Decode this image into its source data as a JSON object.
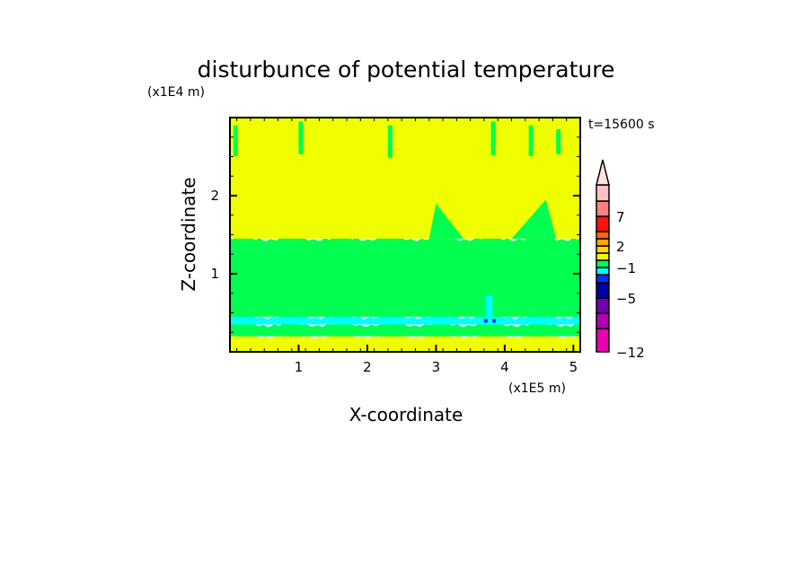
{
  "chart_data": {
    "type": "heatmap",
    "title": "disturbunce of potential temperature",
    "xlabel": "X-coordinate",
    "ylabel": "Z-coordinate",
    "x_unit": "(x1E5 m)",
    "y_unit": "(x1E4 m)",
    "time_label": "t=15600 s",
    "xlim": [
      0,
      5.1
    ],
    "ylim": [
      0,
      3
    ],
    "x_ticks": [
      "1",
      "2",
      "3",
      "4",
      "5"
    ],
    "y_ticks": [
      "1",
      "2"
    ],
    "colorbar": {
      "levels": [
        -12,
        -9,
        -7,
        -5,
        -3,
        -2,
        -1,
        0,
        1,
        2,
        3,
        5,
        7,
        10,
        15
      ],
      "labels": [
        "7",
        "2",
        "-1",
        "-5",
        "-12"
      ],
      "colors": [
        "#e800b0",
        "#b000b0",
        "#7000b0",
        "#0000a0",
        "#0030ff",
        "#00ffff",
        "#00ff50",
        "#f0ff00",
        "#ffd700",
        "#ffa500",
        "#ff6600",
        "#ff1010",
        "#ff8080",
        "#ffc0c0"
      ],
      "extend_color": "#ffe0e0"
    },
    "bands": [
      {
        "z": [
          0,
          0.2
        ],
        "value_range": [
          0,
          1
        ]
      },
      {
        "z": [
          0.2,
          0.35
        ],
        "value_range": [
          -1,
          0
        ]
      },
      {
        "z": [
          0.35,
          0.45
        ],
        "value_range": [
          -2,
          -1
        ]
      },
      {
        "z": [
          0.45,
          1.45
        ],
        "value_range": [
          -1,
          0
        ]
      },
      {
        "z": [
          1.45,
          3
        ],
        "value_range": [
          0,
          1
        ]
      }
    ]
  }
}
